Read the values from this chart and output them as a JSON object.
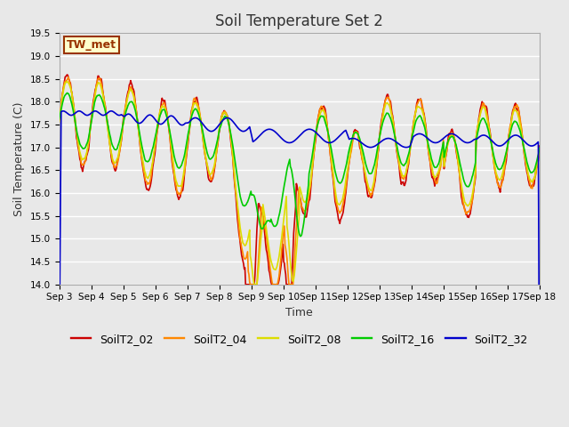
{
  "title": "Soil Temperature Set 2",
  "xlabel": "Time",
  "ylabel": "Soil Temperature (C)",
  "ylim": [
    14.0,
    19.5
  ],
  "plot_bg_color": "#e8e8e8",
  "fig_bg_color": "#e8e8e8",
  "grid_color": "white",
  "series_colors": {
    "SoilT2_02": "#cc0000",
    "SoilT2_04": "#ff8800",
    "SoilT2_08": "#dddd00",
    "SoilT2_16": "#00cc00",
    "SoilT2_32": "#0000cc"
  },
  "annotation_text": "TW_met",
  "annotation_bg": "#ffffcc",
  "annotation_border": "#993300",
  "xtick_labels": [
    "Sep 3",
    "Sep 4",
    "Sep 5",
    "Sep 6",
    "Sep 7",
    "Sep 8",
    "Sep 9",
    "Sep 10",
    "Sep 11",
    "Sep 12",
    "Sep 13",
    "Sep 14",
    "Sep 15",
    "Sep 16",
    "Sep 17",
    "Sep 18"
  ],
  "num_days": 15,
  "title_fontsize": 12,
  "tick_fontsize": 7.5,
  "label_fontsize": 9,
  "legend_fontsize": 9,
  "linewidth": 1.2
}
